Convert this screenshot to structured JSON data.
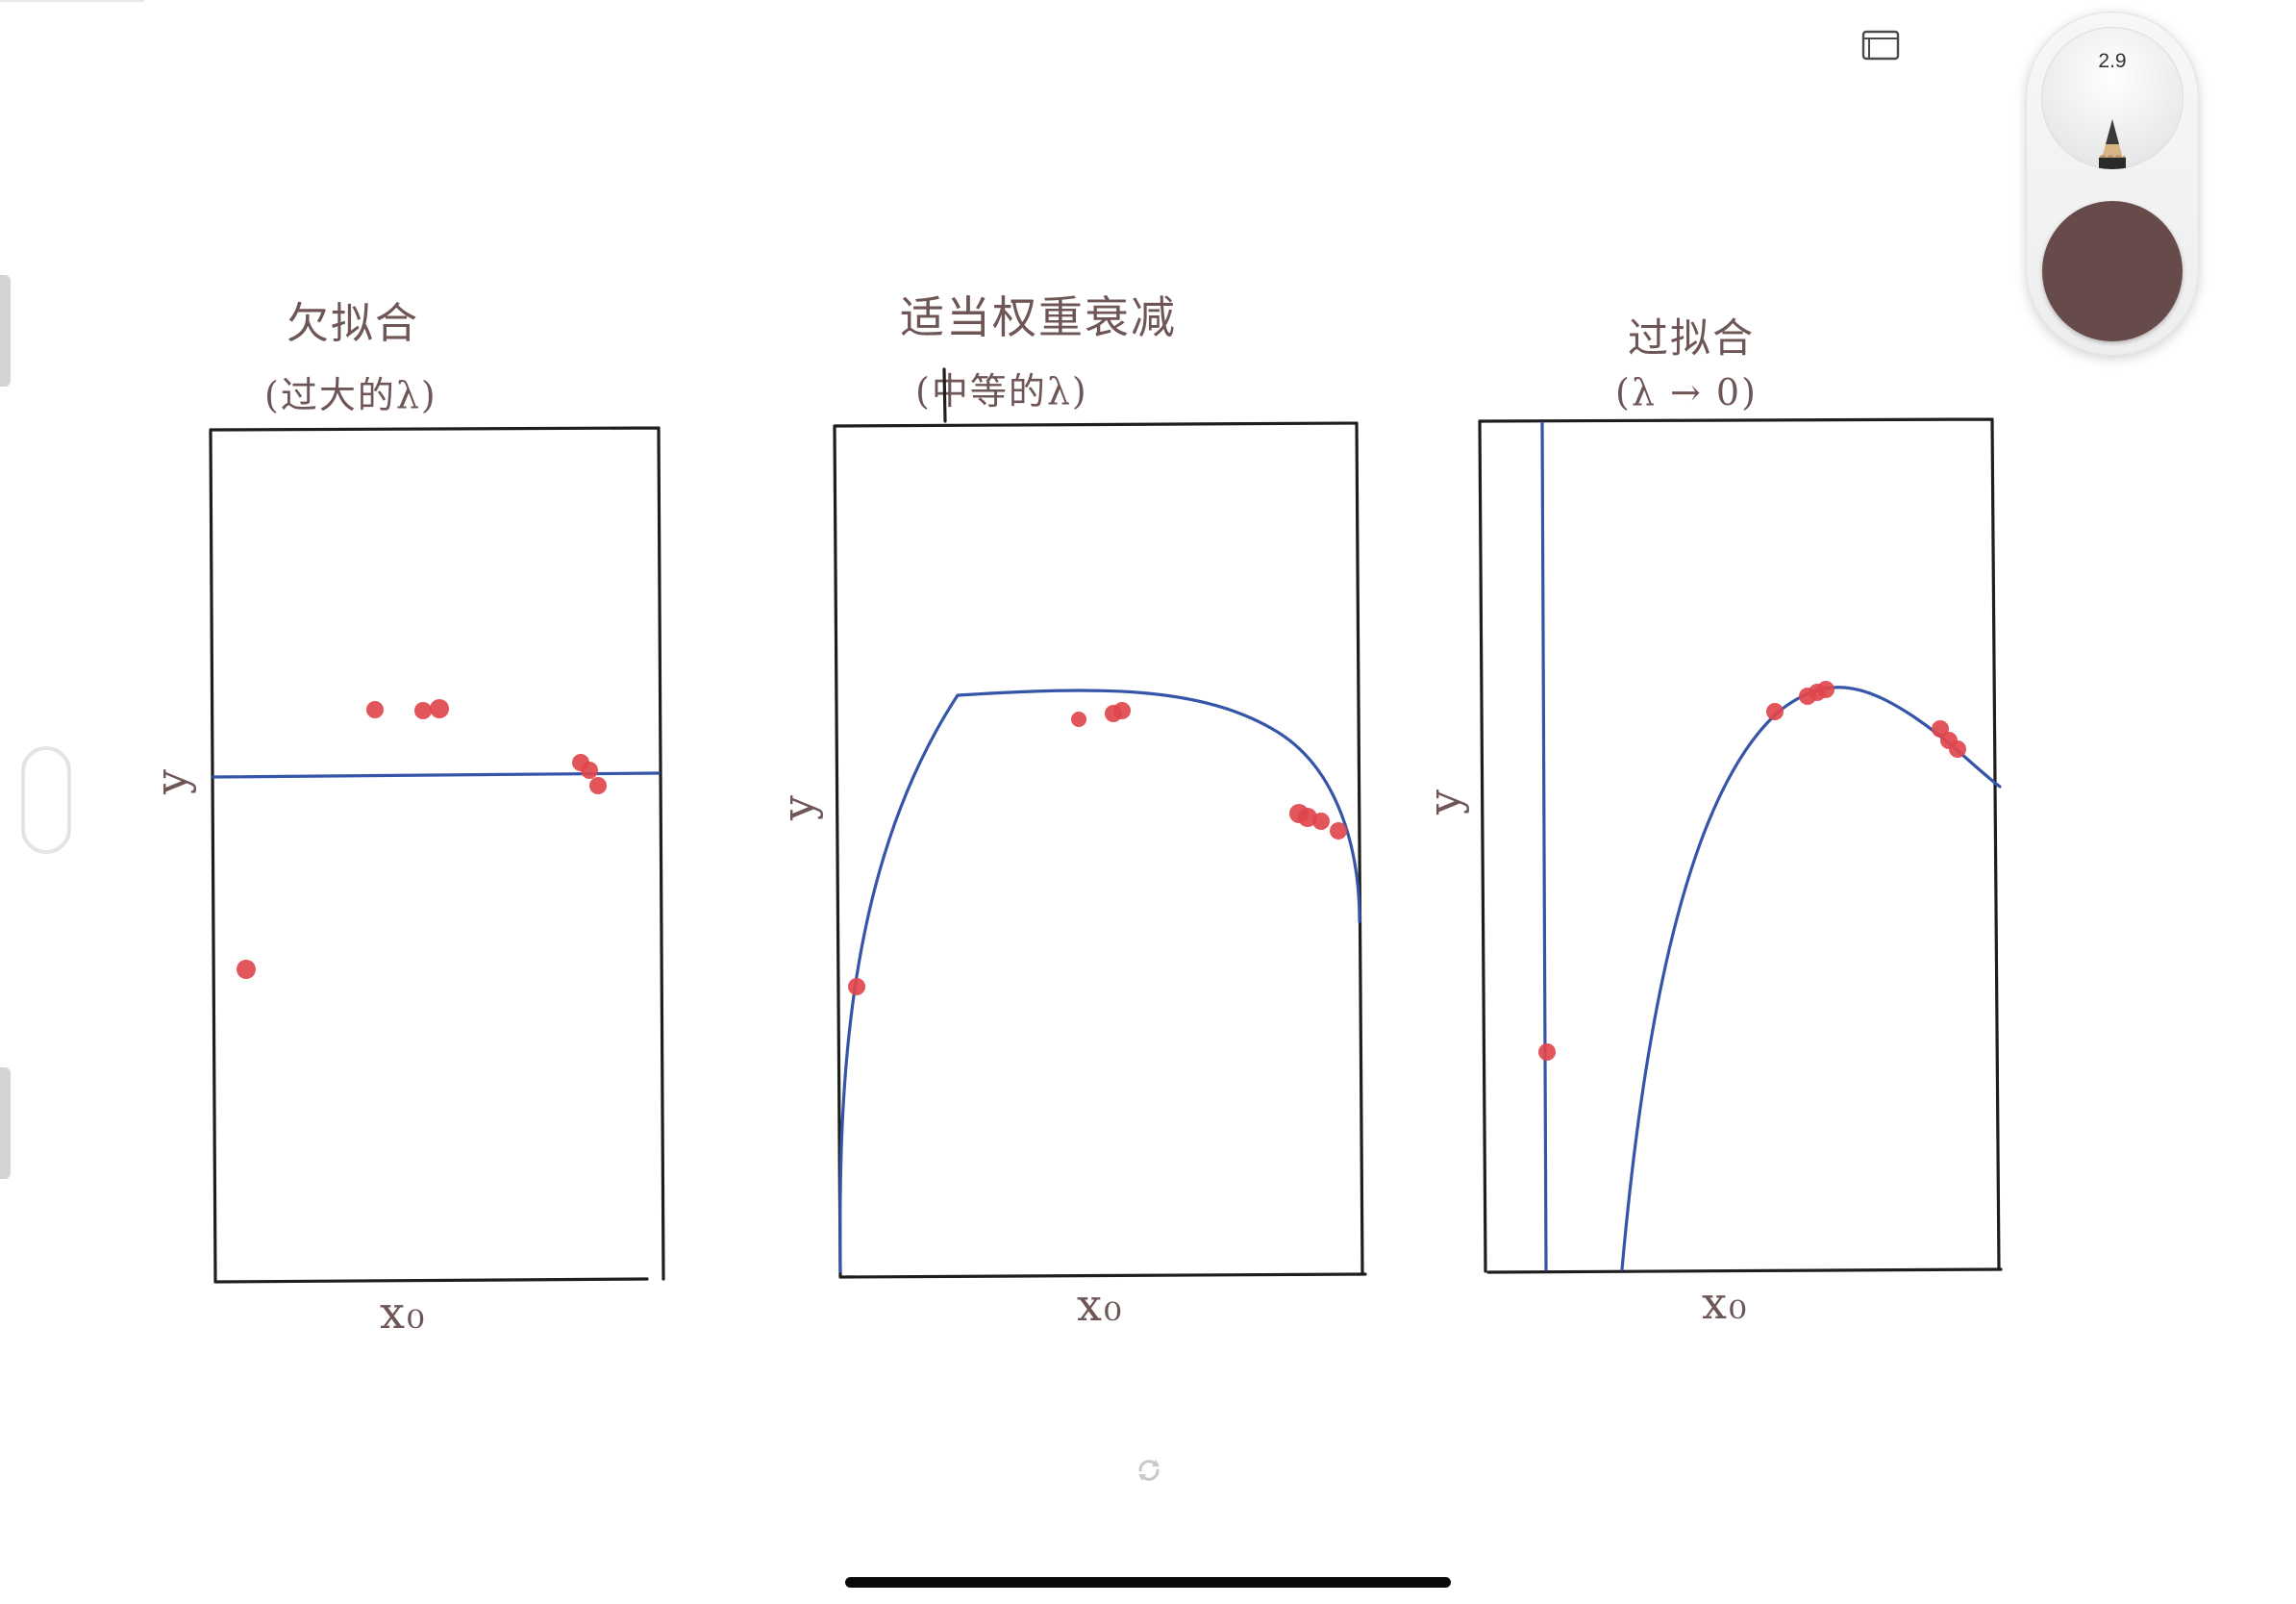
{
  "canvas": {
    "panels": [
      {
        "title": "欠拟合",
        "subtitle": "(过大的λ)",
        "ylabel": "y",
        "xlabel": "x₀"
      },
      {
        "title": "适当权重衰减",
        "subtitle": "(中等的λ)",
        "ylabel": "y",
        "xlabel": "x₀"
      },
      {
        "title": "过拟合",
        "subtitle": "(λ → 0)",
        "ylabel": "y",
        "xlabel": "x₀"
      }
    ]
  },
  "toolbar": {
    "pencil_size": "2.9",
    "pencil_icon": "pencil-icon",
    "ink_color": "#674b4b"
  },
  "colors": {
    "ink_text": "#6f5656",
    "frame": "#1e1e1e",
    "fit_curve": "#3555a8",
    "data_point": "#e0474c"
  }
}
